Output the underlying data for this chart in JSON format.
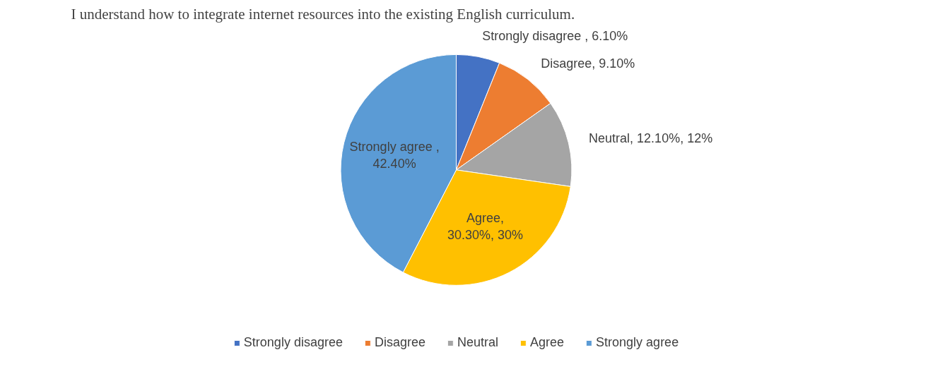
{
  "chart_data": {
    "type": "pie",
    "title": "I understand how to integrate internet resources into the existing English curriculum.",
    "categories": [
      "Strongly disagree",
      "Disagree",
      "Neutral",
      "Agree",
      "Strongly agree"
    ],
    "values": [
      6.1,
      9.1,
      12.1,
      30.3,
      42.4
    ],
    "colors": [
      "#4472c4",
      "#ed7d31",
      "#a5a5a5",
      "#ffc000",
      "#5b9bd5"
    ],
    "value_labels": [
      "Strongly disagree , 6.10%",
      "Disagree, 9.10%",
      "Neutral, 12.10%, 12%",
      "Agree, 30.30%, 30%",
      "Strongly agree , 42.40%"
    ],
    "legend": "bottom"
  }
}
